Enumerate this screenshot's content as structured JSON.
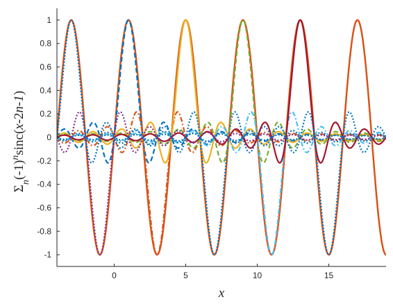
{
  "chart_data": {
    "type": "line",
    "title": "",
    "xlabel": "x",
    "ylabel": {
      "parts": [
        {
          "text": "Σ",
          "style": "normal",
          "shift": "none"
        },
        {
          "text": "n",
          "style": "italic",
          "shift": "sub"
        },
        {
          "text": "(-1)",
          "style": "normal",
          "shift": "none"
        },
        {
          "text": "n",
          "style": "italic",
          "shift": "super"
        },
        {
          "text": "sinc(",
          "style": "normal",
          "shift": "none"
        },
        {
          "text": "x",
          "style": "italic",
          "shift": "none"
        },
        {
          "text": "-2",
          "style": "normal",
          "shift": "none"
        },
        {
          "text": "n",
          "style": "italic",
          "shift": "none"
        },
        {
          "text": "-",
          "style": "normal",
          "shift": "none"
        },
        {
          "text": "1",
          "style": "italic",
          "shift": "none"
        },
        {
          "text": ")",
          "style": "normal",
          "shift": "none"
        }
      ]
    },
    "xlim": [
      -4,
      19
    ],
    "ylim": [
      -1.1,
      1.1
    ],
    "xticks": [
      0,
      5,
      10,
      15
    ],
    "xtick_labels": [
      "0",
      "5",
      "10",
      "15"
    ],
    "yticks": [
      1,
      0.8,
      0.6,
      0.4,
      0.2,
      0,
      -0.2,
      -0.4,
      -0.6,
      -0.8,
      -1
    ],
    "ytick_labels": [
      "1",
      "0.8",
      "0.6",
      "0.4",
      "0.2",
      "0",
      "-0.2",
      "-0.4",
      "-0.6",
      "-0.8",
      "-1"
    ],
    "grid": false,
    "legend": "none",
    "sum_curve": {
      "color": "#D95319",
      "dash": "solid",
      "width": 2.5,
      "function": "sin(pi*x/2)",
      "x": [
        -4,
        -3,
        -2,
        -1,
        0,
        1,
        2,
        3,
        4,
        5,
        6,
        7,
        8,
        9,
        10,
        11,
        12,
        13,
        14,
        15,
        16,
        17,
        18,
        19
      ],
      "y": [
        0,
        1,
        0,
        -1,
        0,
        1,
        0,
        -1,
        0,
        1,
        0,
        -1,
        0,
        1,
        0,
        -1,
        0,
        1,
        0,
        -1,
        0,
        1,
        0,
        -1
      ]
    },
    "components": [
      {
        "n": 0,
        "center": 1,
        "color": "#0072BD",
        "dash": "dashed"
      },
      {
        "n": 1,
        "center": 3,
        "color": "#D95319",
        "dash": "dashdot"
      },
      {
        "n": 2,
        "center": 5,
        "color": "#EDB120",
        "dash": "solid"
      },
      {
        "n": 3,
        "center": 7,
        "color": "#0072BD",
        "dash": "dotted"
      },
      {
        "n": 4,
        "center": 9,
        "color": "#77AC30",
        "dash": "dashed"
      },
      {
        "n": 5,
        "center": 11,
        "color": "#4DBEEE",
        "dash": "dashdot"
      },
      {
        "n": 6,
        "center": 13,
        "color": "#A2142F",
        "dash": "solid"
      },
      {
        "n": 7,
        "center": 15,
        "color": "#0072BD",
        "dash": "dotted"
      },
      {
        "n": -1,
        "center": -1,
        "color": "#7E2F8E",
        "dash": "dotted"
      },
      {
        "n": -2,
        "center": -3,
        "color": "#0072BD",
        "dash": "dotted"
      }
    ]
  }
}
